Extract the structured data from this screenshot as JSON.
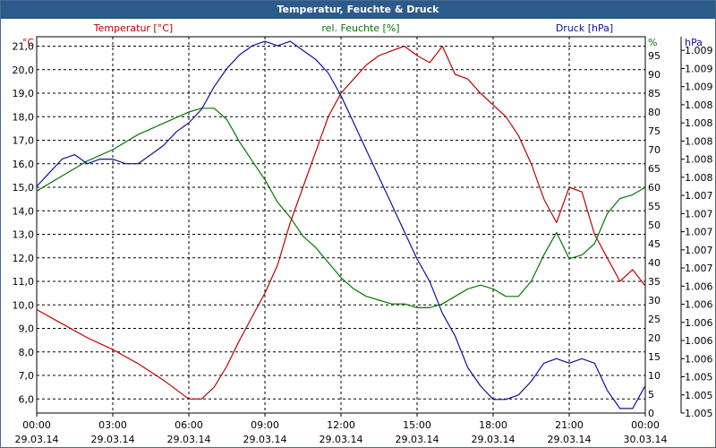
{
  "window": {
    "title": "Temperatur, Feuchte & Druck"
  },
  "colors": {
    "temperature": "#c00000",
    "humidity": "#007800",
    "pressure": "#1010a0",
    "axis_text": "#000000",
    "grid": "#000000",
    "title_bar": "#2c5a8a"
  },
  "chart_data": {
    "type": "line",
    "grid": true,
    "legend": "top",
    "x": {
      "unit": "datetime",
      "ticks": [
        {
          "time": "00:00",
          "date": "29.03.14"
        },
        {
          "time": "03:00",
          "date": "29.03.14"
        },
        {
          "time": "06:00",
          "date": "29.03.14"
        },
        {
          "time": "09:00",
          "date": "29.03.14"
        },
        {
          "time": "12:00",
          "date": "29.03.14"
        },
        {
          "time": "15:00",
          "date": "29.03.14"
        },
        {
          "time": "18:00",
          "date": "29.03.14"
        },
        {
          "time": "21:00",
          "date": "29.03.14"
        },
        {
          "time": "00:00",
          "date": "30.03.14"
        }
      ]
    },
    "axes": {
      "left": {
        "label": "Temperatur [°C]",
        "unit": "°C",
        "range": [
          5.4,
          21.4
        ],
        "tick_values": [
          6,
          7,
          8,
          9,
          10,
          11,
          12,
          13,
          14,
          15,
          16,
          17,
          18,
          19,
          20,
          21
        ],
        "tick_labels": [
          "6,0",
          "7,0",
          "8,0",
          "9,0",
          "10,0",
          "11,0",
          "12,0",
          "13,0",
          "14,0",
          "15,0",
          "16,0",
          "17,0",
          "18,0",
          "19,0",
          "20,0",
          "21,0"
        ]
      },
      "right1": {
        "label": "rel. Feuchte [%]",
        "unit": "%",
        "range": [
          0,
          100
        ],
        "tick_values": [
          0,
          5,
          10,
          15,
          20,
          25,
          30,
          35,
          40,
          45,
          50,
          55,
          60,
          65,
          70,
          75,
          80,
          85,
          90,
          95
        ],
        "tick_labels": [
          "0",
          "5",
          "10",
          "15",
          "20",
          "25",
          "30",
          "35",
          "40",
          "45",
          "50",
          "55",
          "60",
          "65",
          "70",
          "75",
          "80",
          "85",
          "90",
          "95"
        ]
      },
      "right2": {
        "label": "Druck [hPa]",
        "unit": "hPa",
        "range": [
          1005,
          1009.15
        ],
        "tick_values": [
          1005,
          1005.2,
          1005.4,
          1005.6,
          1005.8,
          1006,
          1006.2,
          1006.4,
          1006.6,
          1006.8,
          1007,
          1007.2,
          1007.4,
          1007.6,
          1007.8,
          1008,
          1008.2,
          1008.4,
          1008.6,
          1008.8,
          1009
        ],
        "tick_labels": [
          "1.005",
          "1.005",
          "1.005",
          "1.006",
          "1.006",
          "1.006",
          "1.006",
          "1.006",
          "1.007",
          "1.007",
          "1.007",
          "1.007",
          "1.007",
          "1.008",
          "1.008",
          "1.008",
          "1.008",
          "1.008",
          "1.009",
          "1.009",
          "1.009"
        ]
      }
    },
    "series": [
      {
        "name": "Temperatur [°C]",
        "axis": "left",
        "color": "#c00000",
        "x_hours": [
          0,
          1,
          2,
          3,
          4,
          5,
          6,
          6.5,
          7,
          7.5,
          8,
          8.5,
          9,
          9.5,
          10,
          10.5,
          11,
          11.5,
          12,
          12.5,
          13,
          13.5,
          14,
          14.5,
          15,
          15.5,
          16,
          16.5,
          17,
          17.5,
          18,
          18.5,
          19,
          19.5,
          20,
          20.5,
          21,
          21.5,
          22,
          22.5,
          23,
          23.5,
          24
        ],
        "values": [
          9.8,
          9.2,
          8.6,
          8.1,
          7.5,
          6.8,
          6.0,
          6.0,
          6.5,
          7.4,
          8.5,
          9.5,
          10.5,
          11.7,
          13.5,
          15.0,
          16.5,
          18.0,
          19.0,
          19.6,
          20.2,
          20.6,
          20.8,
          21.0,
          20.6,
          20.3,
          21.0,
          19.8,
          19.6,
          19.0,
          18.5,
          18.0,
          17.2,
          16.0,
          14.5,
          13.5,
          15.0,
          14.8,
          13.0,
          12.0,
          11.0,
          11.5,
          10.8
        ]
      },
      {
        "name": "rel. Feuchte [%]",
        "axis": "right1",
        "color": "#007800",
        "x_hours": [
          0,
          1,
          2,
          3,
          4,
          5,
          6,
          6.5,
          7,
          7.5,
          8,
          8.5,
          9,
          9.5,
          10,
          10.5,
          11,
          11.5,
          12,
          12.5,
          13,
          13.5,
          14,
          14.5,
          15,
          15.5,
          16,
          16.5,
          17,
          17.5,
          18,
          18.5,
          19,
          19.5,
          20,
          20.5,
          21,
          21.5,
          22,
          22.5,
          23,
          23.5,
          24
        ],
        "values": [
          59,
          63,
          67,
          70,
          74,
          77,
          80,
          81,
          81,
          78,
          72,
          67,
          62,
          56,
          52,
          47,
          44,
          40,
          36,
          33,
          31,
          30,
          29,
          29,
          28,
          28,
          29,
          31,
          33,
          34,
          33,
          31,
          31,
          35,
          42,
          48,
          41,
          42,
          45,
          53,
          57,
          58,
          60
        ]
      },
      {
        "name": "Druck [hPa]",
        "axis": "right2",
        "color": "#1010a0",
        "x_hours": [
          0,
          0.5,
          1,
          1.5,
          2,
          2.5,
          3,
          3.5,
          4,
          4.5,
          5,
          5.5,
          6,
          6.5,
          7,
          7.5,
          8,
          8.5,
          9,
          9.5,
          10,
          10.5,
          11,
          11.5,
          12,
          12.5,
          13,
          13.5,
          14,
          14.5,
          15,
          15.5,
          16,
          16.5,
          17,
          17.5,
          18,
          18.5,
          19,
          19.5,
          20,
          20.5,
          21,
          21.5,
          22,
          22.5,
          23,
          23.5,
          24
        ],
        "values": [
          1007.5,
          1007.65,
          1007.8,
          1007.85,
          1007.75,
          1007.8,
          1007.8,
          1007.75,
          1007.75,
          1007.85,
          1007.95,
          1008.1,
          1008.2,
          1008.35,
          1008.6,
          1008.8,
          1008.95,
          1009.05,
          1009.1,
          1009.05,
          1009.1,
          1009.0,
          1008.9,
          1008.75,
          1008.5,
          1008.2,
          1007.9,
          1007.6,
          1007.3,
          1007.0,
          1006.7,
          1006.45,
          1006.1,
          1005.85,
          1005.5,
          1005.3,
          1005.15,
          1005.15,
          1005.2,
          1005.35,
          1005.55,
          1005.6,
          1005.55,
          1005.6,
          1005.55,
          1005.25,
          1005.05,
          1005.05,
          1005.3
        ]
      }
    ]
  }
}
